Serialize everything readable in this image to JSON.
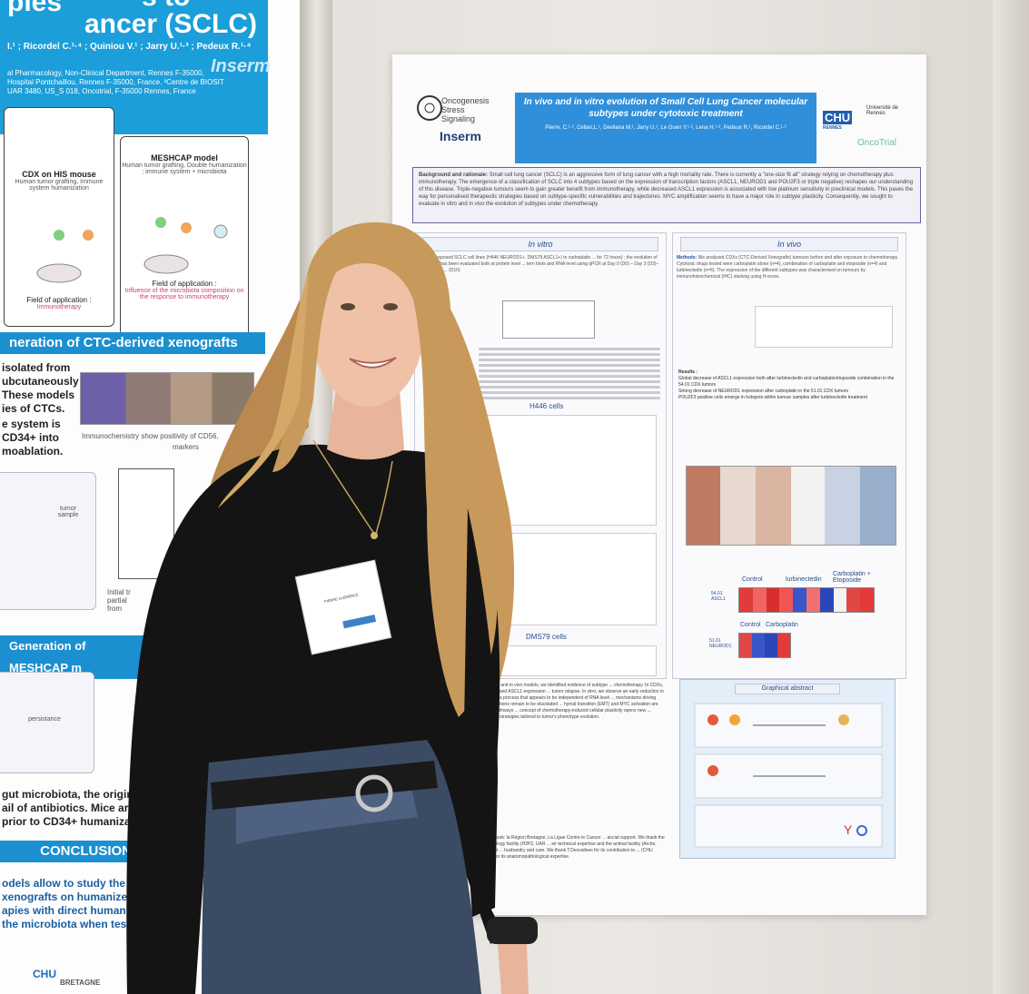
{
  "left_poster": {
    "title_line1": "ples",
    "title_line2": "ancer (SCLC)",
    "title_fragment": "s to",
    "authors": "I.¹ ; Ricordel C.¹·⁴ ; Quiniou V.¹ ; Jarry U.¹·³ ; Pedeux R.¹·⁴",
    "affiliation": "al Pharmacology, Non-Clinical Department, Rennes F-35000, Hospital Pontchaillou, Rennes F-35000, France. ³Centre de BIOSIT UAR 3480, US_S 018, Oncotrial, F-35000 Rennes, France",
    "inserm": "Inserm",
    "cdx_box_title": "CDX on HIS mouse",
    "cdx_box_sub": "Human tumor grafting, Immune system humanization",
    "cdx_field_label": "Field of application :",
    "cdx_field_value": "Immunotherapy",
    "meshcap_box_title": "MESHCAP model",
    "meshcap_box_sub": "Human tumor grafting, Double humanization : immune system + microbiota",
    "meshcap_field_label": "Field of application :",
    "meshcap_field_value": "Influence of the microbiota composition on the response to immunotherapy",
    "section_ctc": "neration of CTC-derived xenografts",
    "text_ctc": "isolated from\nubcutaneously\nThese models\nies of CTCs.",
    "text_system": "e system is\nCD34+ into\nmoablation.",
    "ihc_caption": "Immunochemistry show positivity of CD56,",
    "ihc_caption2": "markers",
    "tumor_label": "tumor sample",
    "initial_label": "Initial tr\npartial\nfrom",
    "section_meshcap": "Generation of MESHCAP m",
    "persistance": "persistance",
    "text_gut": "gut microbiota, the original\nail of antibiotics. Mice are\nprior to CD34+ humanizatio",
    "section_conclusion": "CONCLUSION",
    "text_conclusion": "odels allow to study the\nxenografts on humanized m\napies with direct human targ\nthe microbiota when testing",
    "logo_bretagne": "BRETAGNE",
    "logo_chu": "CHU"
  },
  "main_poster": {
    "logo_oncogenesis": "Oncogenesis",
    "logo_stress": "Stress",
    "logo_signaling": "Signaling",
    "logo_inserm": "Inserm",
    "title": "In vivo and in vitro evolution of Small Cell Lung Cancer molecular subtypes under cytotoxic treatment",
    "authors": "Pierre, C.¹·², Cellan,L.¹, Devilana M.¹, Jarry U.¹, Le Guen Y.¹·², Lena H.¹·², Pedeux R.¹, Ricordel C.¹·²",
    "logo_chu": "CHU",
    "logo_rennes": "RENNES",
    "logo_univ": "Université de Rennes",
    "logo_oncotrial": "OncoTrial",
    "background_label": "Background and rationale:",
    "background_text": "Small cell lung cancer (SCLC) is an aggressive form of lung cancer with a high mortality rate. There is currently a \"one-size fit all\" strategy relying on chemotherapy plus immunotherapy. The emergence of a classification of SCLC into 4 subtypes based on the expression of transcription factors (ASCL1, NEUROD1 and POU2F3 or triple negative) reshapes our understanding of this disease. Triple-negative tumours seem to gain greater benefit from immunotherapy, while decreased ASCL1 expression is associated with low platinum sensitivity in preclinical models. This paves the way for personalised therapeutic strategies based on subtype-specific vulnerabilities and trajectories. MYC amplification seems to have a major role in subtype plasticity. Consequently, we sought to evaluate in vitro and in vivo the evolution of subtypes under chemotherapy.",
    "in_vitro": "In vitro",
    "in_vivo": "In vivo",
    "in_vitro_methods": "ds: We exposed SCLC cell lines (H446 NEUROD1+, DMS79 ASCL1+) to carboplatin ... for 72 hours) ; the evolution of subtypes has been evaluated both at protein level ... tern blots and RNA level using qPCR at Day 0 (D0) – Day 3 (D3)– Day 7 (D7) ... (D10)",
    "in_vivo_methods_label": "Methods:",
    "in_vivo_methods": "We analysed CDXs (CTC-Derived Xenografts) tumours before and after exposure to chemotherapy. Cytotoxic drugs tested were carboplatin alone (n=4), combination of carboplatin and etoposide (n=4) and lurbinectedin (n=6). The expression of the different subtypes was characterised on tumours by immunohistochemical (IHC) staining using H-score.",
    "results_label": "Results :",
    "result_1": "Global decrease of ASCL1 expression both after lurbinectedin and carboplatin/etoposide combination in the 54.01 CDX tumors",
    "result_2": "Strong decrease of NEUROD1 expression after carboplatin in the 51.01 CDX tumors",
    "result_3": "POU2F3 positive cells emerge in hotspots within tumour samples after lurbinectedin treatment",
    "h446_cells": "H446 cells",
    "dms79_cells": "DMS79 cells",
    "graphical_abstract": "Graphical abstract",
    "heatmap_label_control": "Control",
    "heatmap_label_lurb": "lurbinectedin",
    "heatmap_label_carbo": "Carboplatin + Etoposide",
    "heatmap_row_1": "54.01 ASCL1",
    "heatmap_row_2": "51.01 NEUROD1",
    "heatmap2_control": "Control",
    "heatmap2_carbo": "Carboplatin",
    "conclusion_snippet": "both in vitro and in vivo models, we identified evidence of subtype ... chemotherapy. In CDXs, NEUROD1 and ASCL1 expression ... tumor relapse. In vitro, we observe an early reduction in ... 10 days, a process that appears to be independent of RNA level ... mechanisms driving these alterations remain to be elucidated ... hymal transition (EMT) and MYC activation are potential pathways ... concept of chemotherapy-induced cellular plasticity opens new ... therapeutic strategies tailored to tumor's phenotype evolution.",
    "ack_snippet": "d like to thank: la Région Bretagne, La Ligue Contre le Cancer ... ancial support. We thank the histopathology facility (H2P2, UAR ... eir technical expertise and the animal facility (Arche, UAR Biosit ... husbandry and care. We thank T.Desvallees for its contribution to ... (CHU TOURS) for its anatomopathological expertise."
  },
  "badge": {
    "name": "PIERRE CLEMENCE"
  },
  "colors": {
    "left_blue": "#1b9ed9",
    "poster_title_blue": "#2f8fdb",
    "purple_frame": "#6b5e9f",
    "sweater": "#141414",
    "hair": "#c79a5c",
    "jeans": "#3b4b63"
  }
}
